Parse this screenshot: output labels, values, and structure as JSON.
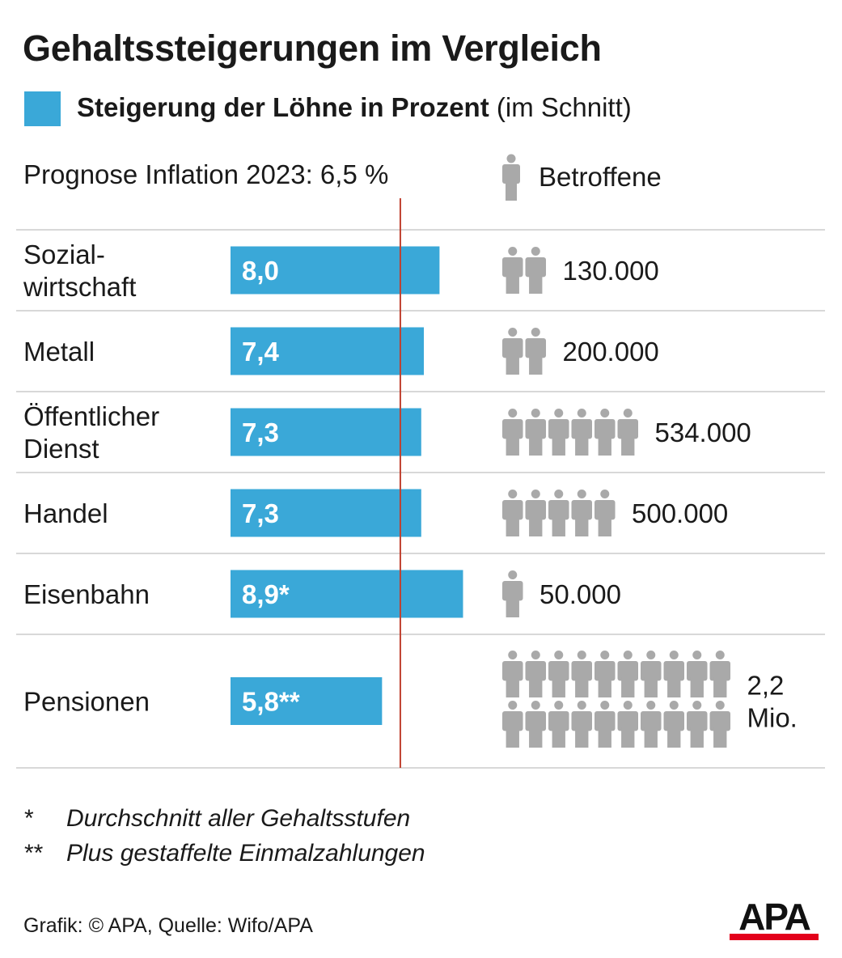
{
  "title": "Gehaltssteigerungen im Vergleich",
  "legend": {
    "bold": "Steigerung der Löhne in Prozent",
    "normal": "(im Schnitt)"
  },
  "inflation_label": "Prognose Inflation 2023: 6,5 %",
  "affected_label": "Betroffene",
  "colors": {
    "bar": "#3aa8d8",
    "reference_line": "#c0412f",
    "person_icon": "#a9a9a9",
    "divider": "#d8d8d8",
    "logo_bar": "#e3001b"
  },
  "chart_data": {
    "type": "bar",
    "orientation": "horizontal",
    "categories": [
      "Sozial-\nwirtschaft",
      "Metall",
      "Öffentlicher\nDienst",
      "Handel",
      "Eisenbahn",
      "Pensionen"
    ],
    "values": [
      8.0,
      7.4,
      7.3,
      7.3,
      8.9,
      5.8
    ],
    "value_labels": [
      "8,0",
      "7,4",
      "7,3",
      "7,3",
      "8,9*",
      "5,8**"
    ],
    "reference_line": {
      "value": 6.5
    },
    "affected_counts": [
      "130.000",
      "200.000",
      "534.000",
      "500.000",
      "50.000",
      "2,2\nMio."
    ],
    "affected_icon_counts": [
      2,
      2,
      6,
      5,
      1,
      20
    ]
  },
  "footnotes": [
    {
      "mark": "*",
      "text": "Durchschnitt aller Gehaltsstufen"
    },
    {
      "mark": "**",
      "text": "Plus gestaffelte Einmalzahlungen"
    }
  ],
  "credit": "Grafik: © APA, Quelle: Wifo/APA",
  "logo_text": "APA",
  "icons": {
    "person": "person-icon"
  }
}
